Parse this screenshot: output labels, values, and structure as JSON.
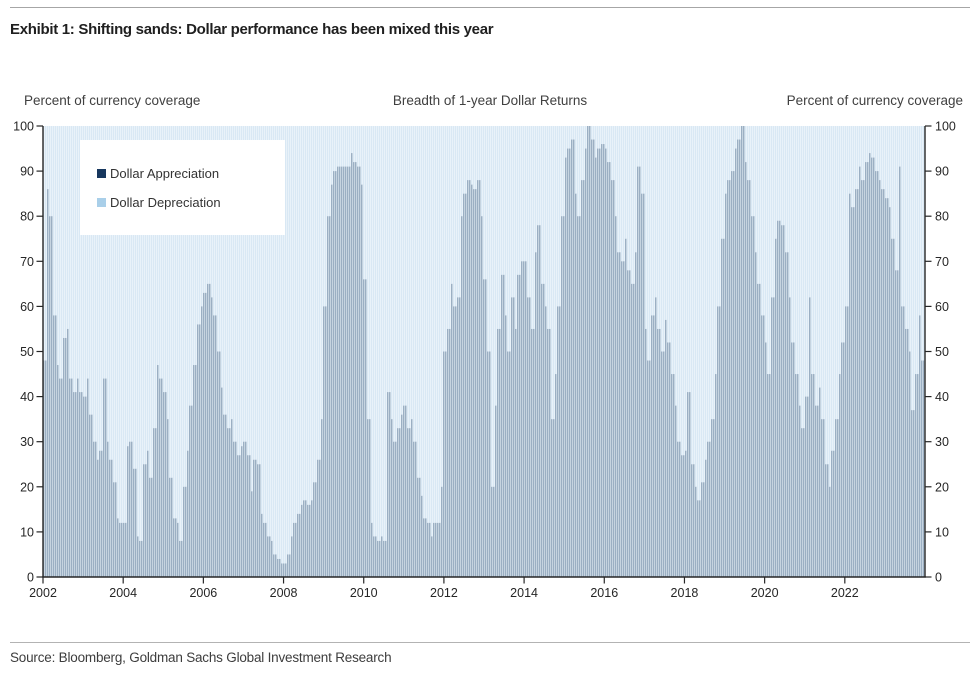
{
  "header": {
    "title": "Exhibit 1: Shifting sands: Dollar performance has been mixed this year"
  },
  "footer": {
    "source": "Source: Bloomberg, Goldman Sachs Global Investment Research"
  },
  "chart": {
    "title": "Breadth of 1-year Dollar Returns",
    "left_axis_caption": "Percent of currency coverage",
    "right_axis_caption": "Percent of currency coverage",
    "legend": [
      {
        "label": "Dollar Appreciation",
        "color": "#17375e"
      },
      {
        "label": "Dollar Depreciation",
        "color": "#a9cfe9"
      }
    ]
  },
  "chart_data": {
    "type": "bar",
    "stacked": true,
    "stack_total": 100,
    "title": "Breadth of 1-year Dollar Returns",
    "ylabel_left": "Percent of currency coverage",
    "ylabel_right": "Percent of currency coverage",
    "ylim": [
      0,
      100
    ],
    "yticks": [
      0,
      10,
      20,
      30,
      40,
      50,
      60,
      70,
      80,
      90,
      100
    ],
    "xticks": [
      2002,
      2004,
      2006,
      2008,
      2010,
      2012,
      2014,
      2016,
      2018,
      2020,
      2022
    ],
    "x_start_year": 2002,
    "x_end_year": 2024,
    "sampling": "monthly",
    "grid": false,
    "legend_position": "upper-left-inside",
    "series": [
      {
        "name": "Dollar Appreciation",
        "color": "#17375e",
        "values": [
          48,
          86,
          80,
          58,
          47,
          44,
          53,
          55,
          44,
          41,
          44,
          41,
          40,
          44,
          36,
          30,
          26,
          28,
          44,
          30,
          26,
          21,
          13,
          12,
          12,
          29,
          30,
          24,
          9,
          8,
          25,
          28,
          22,
          33,
          47,
          44,
          41,
          35,
          22,
          13,
          12,
          8,
          20,
          28,
          38,
          47,
          56,
          60,
          63,
          65,
          62,
          58,
          50,
          42,
          36,
          33,
          35,
          30,
          27,
          29,
          30,
          27,
          19,
          26,
          25,
          14,
          12,
          9,
          8,
          5,
          4,
          3,
          3,
          5,
          9,
          12,
          14,
          16,
          17,
          16,
          17,
          21,
          26,
          35,
          60,
          80,
          87,
          90,
          91,
          91,
          91,
          91,
          94,
          92,
          91,
          87,
          66,
          35,
          12,
          9,
          8,
          9,
          8,
          41,
          35,
          30,
          33,
          36,
          38,
          33,
          35,
          30,
          22,
          18,
          13,
          12,
          9,
          12,
          12,
          20,
          50,
          55,
          65,
          60,
          62,
          80,
          85,
          88,
          87,
          86,
          88,
          80,
          66,
          50,
          20,
          38,
          55,
          67,
          58,
          50,
          62,
          55,
          67,
          70,
          70,
          62,
          55,
          72,
          78,
          65,
          60,
          55,
          35,
          45,
          60,
          80,
          93,
          95,
          97,
          85,
          80,
          88,
          95,
          100,
          97,
          93,
          95,
          96,
          95,
          92,
          88,
          80,
          72,
          70,
          75,
          68,
          65,
          72,
          91,
          85,
          55,
          48,
          58,
          62,
          55,
          50,
          57,
          52,
          45,
          38,
          30,
          27,
          28,
          41,
          25,
          20,
          17,
          21,
          26,
          30,
          35,
          45,
          60,
          75,
          85,
          88,
          90,
          95,
          97,
          100,
          92,
          88,
          80,
          72,
          65,
          58,
          52,
          45,
          62,
          75,
          79,
          78,
          72,
          62,
          52,
          45,
          38,
          33,
          40,
          62,
          45,
          38,
          42,
          35,
          25,
          20,
          28,
          35,
          45,
          52,
          60,
          85,
          82,
          86,
          91,
          88,
          92,
          94,
          93,
          90,
          88,
          86,
          84,
          82,
          75,
          68,
          91,
          60,
          55,
          50,
          37,
          45,
          58,
          48
        ]
      },
      {
        "name": "Dollar Depreciation",
        "color": "#a9cfe9",
        "values_rule": "100 minus the Dollar Appreciation value for each month (bars stack to 100)"
      }
    ]
  }
}
